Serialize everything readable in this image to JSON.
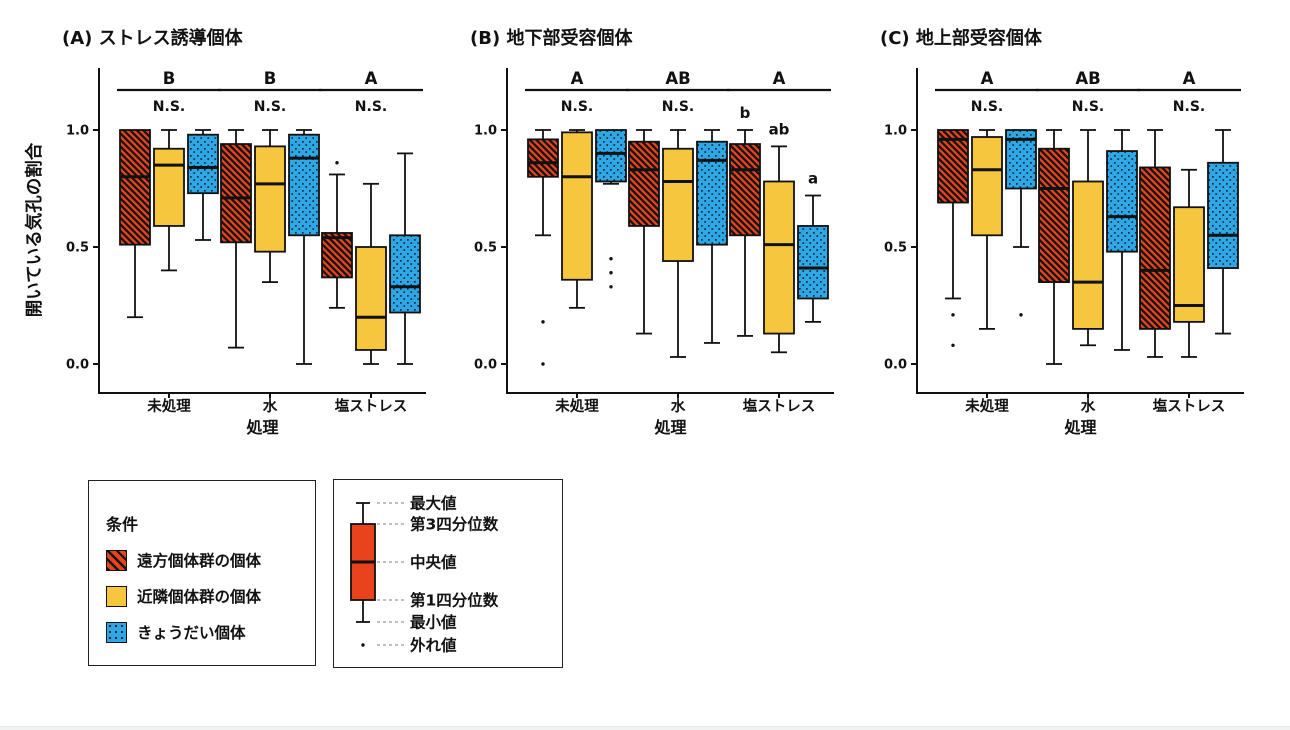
{
  "chart_data": {
    "type": "grouped_boxplot",
    "ylabel": "開いている気孔の割合",
    "xlabel": "処理",
    "categories": [
      "未処理",
      "水",
      "塩ストレス"
    ],
    "yticks": [
      "0.0",
      "0.5",
      "1.0"
    ],
    "ylim": [
      0.0,
      1.25
    ],
    "grid": false,
    "series_names": [
      "遠方個体群の個体",
      "近隣個体群の個体",
      "きょうだい個体"
    ],
    "series_styles": [
      {
        "fill": "#E8431C",
        "pattern": "hatch",
        "pattern_color": "#141414"
      },
      {
        "fill": "#F6C63C",
        "pattern": "solid",
        "pattern_color": null
      },
      {
        "fill": "#2FA7E4",
        "pattern": "dots",
        "pattern_color": "#0d2b45"
      }
    ],
    "ink_color": "#111111",
    "panels": [
      {
        "title": "(A) ストレス誘導個体",
        "group_letters": [
          "B",
          "B",
          "A"
        ],
        "group_annotations": [
          "N.S.",
          "N.S.",
          "N.S."
        ],
        "box_letters": [
          null,
          null,
          null
        ],
        "groups": [
          {
            "category": "未処理",
            "boxes": [
              {
                "min": 0.2,
                "q1": 0.51,
                "median": 0.8,
                "q3": 1.0,
                "max": 1.0,
                "outliers": []
              },
              {
                "min": 0.4,
                "q1": 0.59,
                "median": 0.85,
                "q3": 0.92,
                "max": 1.0,
                "outliers": []
              },
              {
                "min": 0.53,
                "q1": 0.73,
                "median": 0.84,
                "q3": 0.98,
                "max": 1.0,
                "outliers": []
              }
            ]
          },
          {
            "category": "水",
            "boxes": [
              {
                "min": 0.07,
                "q1": 0.52,
                "median": 0.71,
                "q3": 0.94,
                "max": 1.0,
                "outliers": []
              },
              {
                "min": 0.35,
                "q1": 0.48,
                "median": 0.77,
                "q3": 0.93,
                "max": 1.0,
                "outliers": []
              },
              {
                "min": 0.0,
                "q1": 0.55,
                "median": 0.88,
                "q3": 0.98,
                "max": 1.0,
                "outliers": []
              }
            ]
          },
          {
            "category": "塩ストレス",
            "boxes": [
              {
                "min": 0.24,
                "q1": 0.37,
                "median": 0.54,
                "q3": 0.56,
                "max": 0.81,
                "outliers": [
                  0.86
                ]
              },
              {
                "min": 0.0,
                "q1": 0.06,
                "median": 0.2,
                "q3": 0.5,
                "max": 0.77,
                "outliers": []
              },
              {
                "min": 0.0,
                "q1": 0.22,
                "median": 0.33,
                "q3": 0.55,
                "max": 0.9,
                "outliers": []
              }
            ]
          }
        ]
      },
      {
        "title": "(B) 地下部受容個体",
        "group_letters": [
          "A",
          "AB",
          "A"
        ],
        "group_annotations": [
          "N.S.",
          "N.S.",
          null
        ],
        "box_letters": [
          null,
          null,
          [
            "b",
            "ab",
            "a"
          ]
        ],
        "groups": [
          {
            "category": "未処理",
            "boxes": [
              {
                "min": 0.55,
                "q1": 0.8,
                "median": 0.86,
                "q3": 0.96,
                "max": 1.0,
                "outliers": [
                  0.18,
                  0.0
                ]
              },
              {
                "min": 0.24,
                "q1": 0.36,
                "median": 0.8,
                "q3": 0.99,
                "max": 1.0,
                "outliers": []
              },
              {
                "min": 0.77,
                "q1": 0.78,
                "median": 0.9,
                "q3": 1.0,
                "max": 1.0,
                "outliers": [
                  0.45,
                  0.39,
                  0.33
                ]
              }
            ]
          },
          {
            "category": "水",
            "boxes": [
              {
                "min": 0.13,
                "q1": 0.59,
                "median": 0.83,
                "q3": 0.95,
                "max": 1.0,
                "outliers": []
              },
              {
                "min": 0.03,
                "q1": 0.44,
                "median": 0.78,
                "q3": 0.92,
                "max": 1.0,
                "outliers": []
              },
              {
                "min": 0.09,
                "q1": 0.51,
                "median": 0.87,
                "q3": 0.95,
                "max": 1.0,
                "outliers": []
              }
            ]
          },
          {
            "category": "塩ストレス",
            "boxes": [
              {
                "min": 0.12,
                "q1": 0.55,
                "median": 0.83,
                "q3": 0.94,
                "max": 1.0,
                "outliers": []
              },
              {
                "min": 0.05,
                "q1": 0.13,
                "median": 0.51,
                "q3": 0.78,
                "max": 0.93,
                "outliers": []
              },
              {
                "min": 0.18,
                "q1": 0.28,
                "median": 0.41,
                "q3": 0.59,
                "max": 0.72,
                "outliers": []
              }
            ]
          }
        ]
      },
      {
        "title": "(C) 地上部受容個体",
        "group_letters": [
          "A",
          "AB",
          "A"
        ],
        "group_annotations": [
          "N.S.",
          "N.S.",
          "N.S."
        ],
        "box_letters": [
          null,
          null,
          null
        ],
        "groups": [
          {
            "category": "未処理",
            "boxes": [
              {
                "min": 0.28,
                "q1": 0.69,
                "median": 0.96,
                "q3": 1.0,
                "max": 1.0,
                "outliers": [
                  0.21,
                  0.08
                ]
              },
              {
                "min": 0.15,
                "q1": 0.55,
                "median": 0.83,
                "q3": 0.97,
                "max": 1.0,
                "outliers": []
              },
              {
                "min": 0.5,
                "q1": 0.75,
                "median": 0.96,
                "q3": 1.0,
                "max": 1.0,
                "outliers": [
                  0.21
                ]
              }
            ]
          },
          {
            "category": "水",
            "boxes": [
              {
                "min": 0.0,
                "q1": 0.35,
                "median": 0.75,
                "q3": 0.92,
                "max": 1.0,
                "outliers": []
              },
              {
                "min": 0.08,
                "q1": 0.15,
                "median": 0.35,
                "q3": 0.78,
                "max": 1.0,
                "outliers": []
              },
              {
                "min": 0.06,
                "q1": 0.48,
                "median": 0.63,
                "q3": 0.91,
                "max": 1.0,
                "outliers": []
              }
            ]
          },
          {
            "category": "塩ストレス",
            "boxes": [
              {
                "min": 0.03,
                "q1": 0.15,
                "median": 0.4,
                "q3": 0.84,
                "max": 1.0,
                "outliers": []
              },
              {
                "min": 0.03,
                "q1": 0.18,
                "median": 0.25,
                "q3": 0.67,
                "max": 0.83,
                "outliers": []
              },
              {
                "min": 0.13,
                "q1": 0.41,
                "median": 0.55,
                "q3": 0.86,
                "max": 1.0,
                "outliers": []
              }
            ]
          }
        ]
      }
    ]
  },
  "legend_condition": {
    "title": "条件",
    "items": [
      {
        "label": "遠方個体群の個体",
        "color": "#E8431C",
        "pattern": "hatch",
        "pattern_color": "#141414"
      },
      {
        "label": "近隣個体群の個体",
        "color": "#F6C63C",
        "pattern": "solid",
        "pattern_color": null
      },
      {
        "label": "きょうだい個体",
        "color": "#2FA7E4",
        "pattern": "dots",
        "pattern_color": "#0d2b45"
      }
    ]
  },
  "legend_boxplot": {
    "box_color": "#E8431C",
    "labels": [
      "最大値",
      "第3四分位数",
      "中央値",
      "第1四分位数",
      "最小値",
      "外れ値"
    ]
  }
}
